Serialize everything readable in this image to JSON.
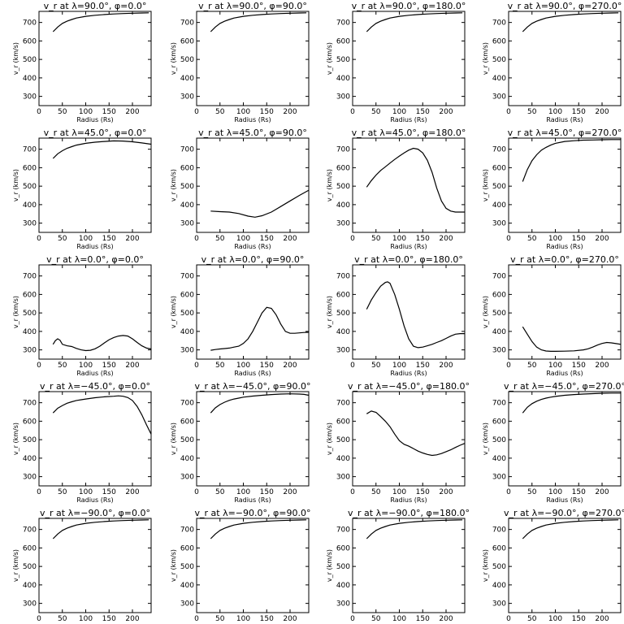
{
  "chart_data": {
    "type": "line",
    "layout": "5x4 grid of small line plots",
    "x_label": "Radius (Rs)",
    "y_label": "v_r (km/s)",
    "x_ticks": [
      0,
      50,
      100,
      150,
      200
    ],
    "y_ticks": [
      300,
      400,
      500,
      600,
      700
    ],
    "xlim": [
      0,
      240
    ],
    "ylim": [
      250,
      760
    ],
    "line_color": "#000000",
    "panels": [
      {
        "title": "v_r at λ=90.0°, φ=0.0°",
        "x": [
          30,
          40,
          50,
          60,
          70,
          80,
          100,
          120,
          140,
          160,
          180,
          200,
          220,
          235
        ],
        "y": [
          650,
          675,
          695,
          707,
          716,
          724,
          733,
          739,
          743,
          746,
          748,
          750,
          751,
          752
        ]
      },
      {
        "title": "v_r at λ=90.0°, φ=90.0°",
        "x": [
          30,
          40,
          50,
          60,
          70,
          80,
          100,
          120,
          140,
          160,
          180,
          200,
          220,
          235
        ],
        "y": [
          650,
          675,
          695,
          707,
          716,
          724,
          733,
          739,
          743,
          746,
          748,
          750,
          751,
          752
        ]
      },
      {
        "title": "v_r at λ=90.0°, φ=180.0°",
        "x": [
          30,
          40,
          50,
          60,
          70,
          80,
          100,
          120,
          140,
          160,
          180,
          200,
          220,
          235
        ],
        "y": [
          650,
          675,
          695,
          707,
          716,
          724,
          733,
          739,
          743,
          746,
          748,
          750,
          751,
          752
        ]
      },
      {
        "title": "v_r at λ=90.0°, φ=270.0°",
        "x": [
          30,
          40,
          50,
          60,
          70,
          80,
          100,
          120,
          140,
          160,
          180,
          200,
          220,
          235
        ],
        "y": [
          650,
          675,
          695,
          707,
          716,
          724,
          733,
          739,
          743,
          746,
          748,
          750,
          751,
          752
        ]
      },
      {
        "title": "v_r at λ=45.0°, φ=0.0°",
        "x": [
          30,
          40,
          50,
          60,
          70,
          80,
          100,
          120,
          140,
          160,
          180,
          200,
          220,
          240
        ],
        "y": [
          650,
          675,
          692,
          705,
          714,
          722,
          732,
          738,
          742,
          745,
          744,
          740,
          734,
          727
        ]
      },
      {
        "title": "v_r at λ=45.0°, φ=90.0°",
        "x": [
          30,
          50,
          70,
          90,
          110,
          125,
          140,
          160,
          180,
          200,
          220,
          240
        ],
        "y": [
          365,
          362,
          360,
          352,
          338,
          332,
          340,
          360,
          390,
          420,
          450,
          478
        ]
      },
      {
        "title": "v_r at λ=45.0°, φ=180.0°",
        "x": [
          30,
          40,
          50,
          60,
          70,
          80,
          90,
          100,
          110,
          120,
          130,
          140,
          150,
          160,
          170,
          180,
          190,
          200,
          210,
          220,
          230,
          240
        ],
        "y": [
          495,
          530,
          560,
          585,
          605,
          625,
          645,
          663,
          680,
          695,
          705,
          700,
          680,
          640,
          575,
          490,
          420,
          380,
          365,
          360,
          360,
          360
        ]
      },
      {
        "title": "v_r at λ=45.0°, φ=270.0°",
        "x": [
          30,
          40,
          50,
          60,
          70,
          80,
          90,
          100,
          120,
          140,
          160,
          180,
          200,
          220,
          240
        ],
        "y": [
          525,
          590,
          638,
          670,
          695,
          710,
          722,
          732,
          742,
          746,
          749,
          750,
          751,
          752,
          752
        ]
      },
      {
        "title": "v_r at λ=0.0°, φ=0.0°",
        "x": [
          30,
          35,
          40,
          45,
          50,
          60,
          70,
          80,
          90,
          100,
          110,
          120,
          130,
          140,
          150,
          160,
          170,
          180,
          190,
          200,
          210,
          220,
          230,
          240
        ],
        "y": [
          330,
          350,
          360,
          352,
          330,
          322,
          318,
          308,
          300,
          296,
          298,
          306,
          320,
          338,
          355,
          367,
          375,
          378,
          375,
          360,
          340,
          322,
          310,
          305
        ]
      },
      {
        "title": "v_r at λ=0.0°, φ=90.0°",
        "x": [
          30,
          40,
          50,
          60,
          70,
          80,
          90,
          100,
          110,
          120,
          130,
          140,
          150,
          160,
          170,
          180,
          190,
          200,
          210,
          220,
          230,
          240
        ],
        "y": [
          298,
          302,
          305,
          307,
          310,
          315,
          320,
          335,
          360,
          400,
          450,
          500,
          530,
          525,
          490,
          440,
          400,
          390,
          390,
          392,
          394,
          395
        ]
      },
      {
        "title": "v_r at λ=0.0°, φ=180.0°",
        "x": [
          30,
          40,
          50,
          60,
          70,
          75,
          80,
          90,
          100,
          110,
          120,
          130,
          140,
          150,
          160,
          170,
          180,
          190,
          200,
          210,
          220,
          230,
          240
        ],
        "y": [
          520,
          570,
          610,
          645,
          665,
          668,
          660,
          600,
          520,
          430,
          360,
          320,
          312,
          315,
          322,
          330,
          340,
          350,
          362,
          375,
          385,
          388,
          388
        ]
      },
      {
        "title": "v_r at λ=0.0°, φ=270.0°",
        "x": [
          30,
          40,
          50,
          60,
          70,
          80,
          90,
          100,
          120,
          140,
          160,
          170,
          180,
          190,
          200,
          210,
          220,
          230,
          240
        ],
        "y": [
          425,
          385,
          345,
          315,
          300,
          294,
          292,
          292,
          293,
          295,
          300,
          306,
          315,
          326,
          335,
          340,
          338,
          334,
          330
        ]
      },
      {
        "title": "v_r at λ=−45.0°, φ=0.0°",
        "x": [
          30,
          40,
          50,
          60,
          70,
          80,
          90,
          100,
          120,
          140,
          160,
          170,
          180,
          190,
          200,
          210,
          220,
          230,
          240
        ],
        "y": [
          645,
          670,
          685,
          697,
          705,
          712,
          716,
          720,
          727,
          732,
          735,
          737,
          735,
          728,
          712,
          680,
          635,
          580,
          530
        ]
      },
      {
        "title": "v_r at λ=−45.0°, φ=90.0°",
        "x": [
          30,
          40,
          50,
          60,
          70,
          80,
          90,
          100,
          120,
          140,
          160,
          180,
          200,
          220,
          230,
          240
        ],
        "y": [
          645,
          672,
          690,
          703,
          713,
          720,
          725,
          730,
          736,
          740,
          744,
          747,
          748,
          747,
          745,
          740
        ]
      },
      {
        "title": "v_r at λ=−45.0°, φ=180.0°",
        "x": [
          30,
          40,
          50,
          60,
          70,
          80,
          90,
          100,
          110,
          120,
          130,
          140,
          150,
          160,
          170,
          180,
          190,
          200,
          210,
          220,
          230,
          240
        ],
        "y": [
          640,
          655,
          648,
          625,
          600,
          570,
          530,
          495,
          475,
          465,
          452,
          438,
          428,
          420,
          415,
          418,
          425,
          435,
          445,
          458,
          470,
          480
        ]
      },
      {
        "title": "v_r at λ=−45.0°, φ=270.0°",
        "x": [
          30,
          40,
          50,
          60,
          70,
          80,
          90,
          100,
          120,
          140,
          160,
          180,
          200,
          220,
          240
        ],
        "y": [
          645,
          675,
          695,
          708,
          718,
          725,
          730,
          734,
          740,
          744,
          747,
          749,
          751,
          752,
          752
        ]
      },
      {
        "title": "v_r at λ=−90.0°, φ=0.0°",
        "x": [
          30,
          40,
          50,
          60,
          70,
          80,
          100,
          120,
          140,
          160,
          180,
          200,
          220,
          235
        ],
        "y": [
          650,
          675,
          695,
          707,
          716,
          724,
          733,
          739,
          743,
          746,
          748,
          750,
          751,
          752
        ]
      },
      {
        "title": "v_r at λ=−90.0°, φ=90.0°",
        "x": [
          30,
          40,
          50,
          60,
          70,
          80,
          100,
          120,
          140,
          160,
          180,
          200,
          220,
          235
        ],
        "y": [
          650,
          675,
          695,
          707,
          716,
          724,
          733,
          739,
          743,
          746,
          748,
          750,
          751,
          752
        ]
      },
      {
        "title": "v_r at λ=−90.0°, φ=180.0°",
        "x": [
          30,
          40,
          50,
          60,
          70,
          80,
          100,
          120,
          140,
          160,
          180,
          200,
          220,
          235
        ],
        "y": [
          650,
          675,
          695,
          707,
          716,
          724,
          733,
          739,
          743,
          746,
          748,
          750,
          751,
          752
        ]
      },
      {
        "title": "v_r at λ=−90.0°, φ=270.0°",
        "x": [
          30,
          40,
          50,
          60,
          70,
          80,
          100,
          120,
          140,
          160,
          180,
          200,
          220,
          235
        ],
        "y": [
          650,
          675,
          695,
          707,
          716,
          724,
          733,
          739,
          743,
          746,
          748,
          750,
          751,
          752
        ]
      }
    ]
  }
}
